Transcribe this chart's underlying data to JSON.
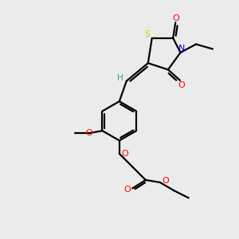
{
  "bg_color": "#ebebeb",
  "atom_colors": {
    "S": "#cccc00",
    "N": "#0000ff",
    "O": "#ff0000",
    "C": "#000000",
    "H": "#4a9090"
  },
  "bond_color": "#000000",
  "bond_lw": 1.6
}
